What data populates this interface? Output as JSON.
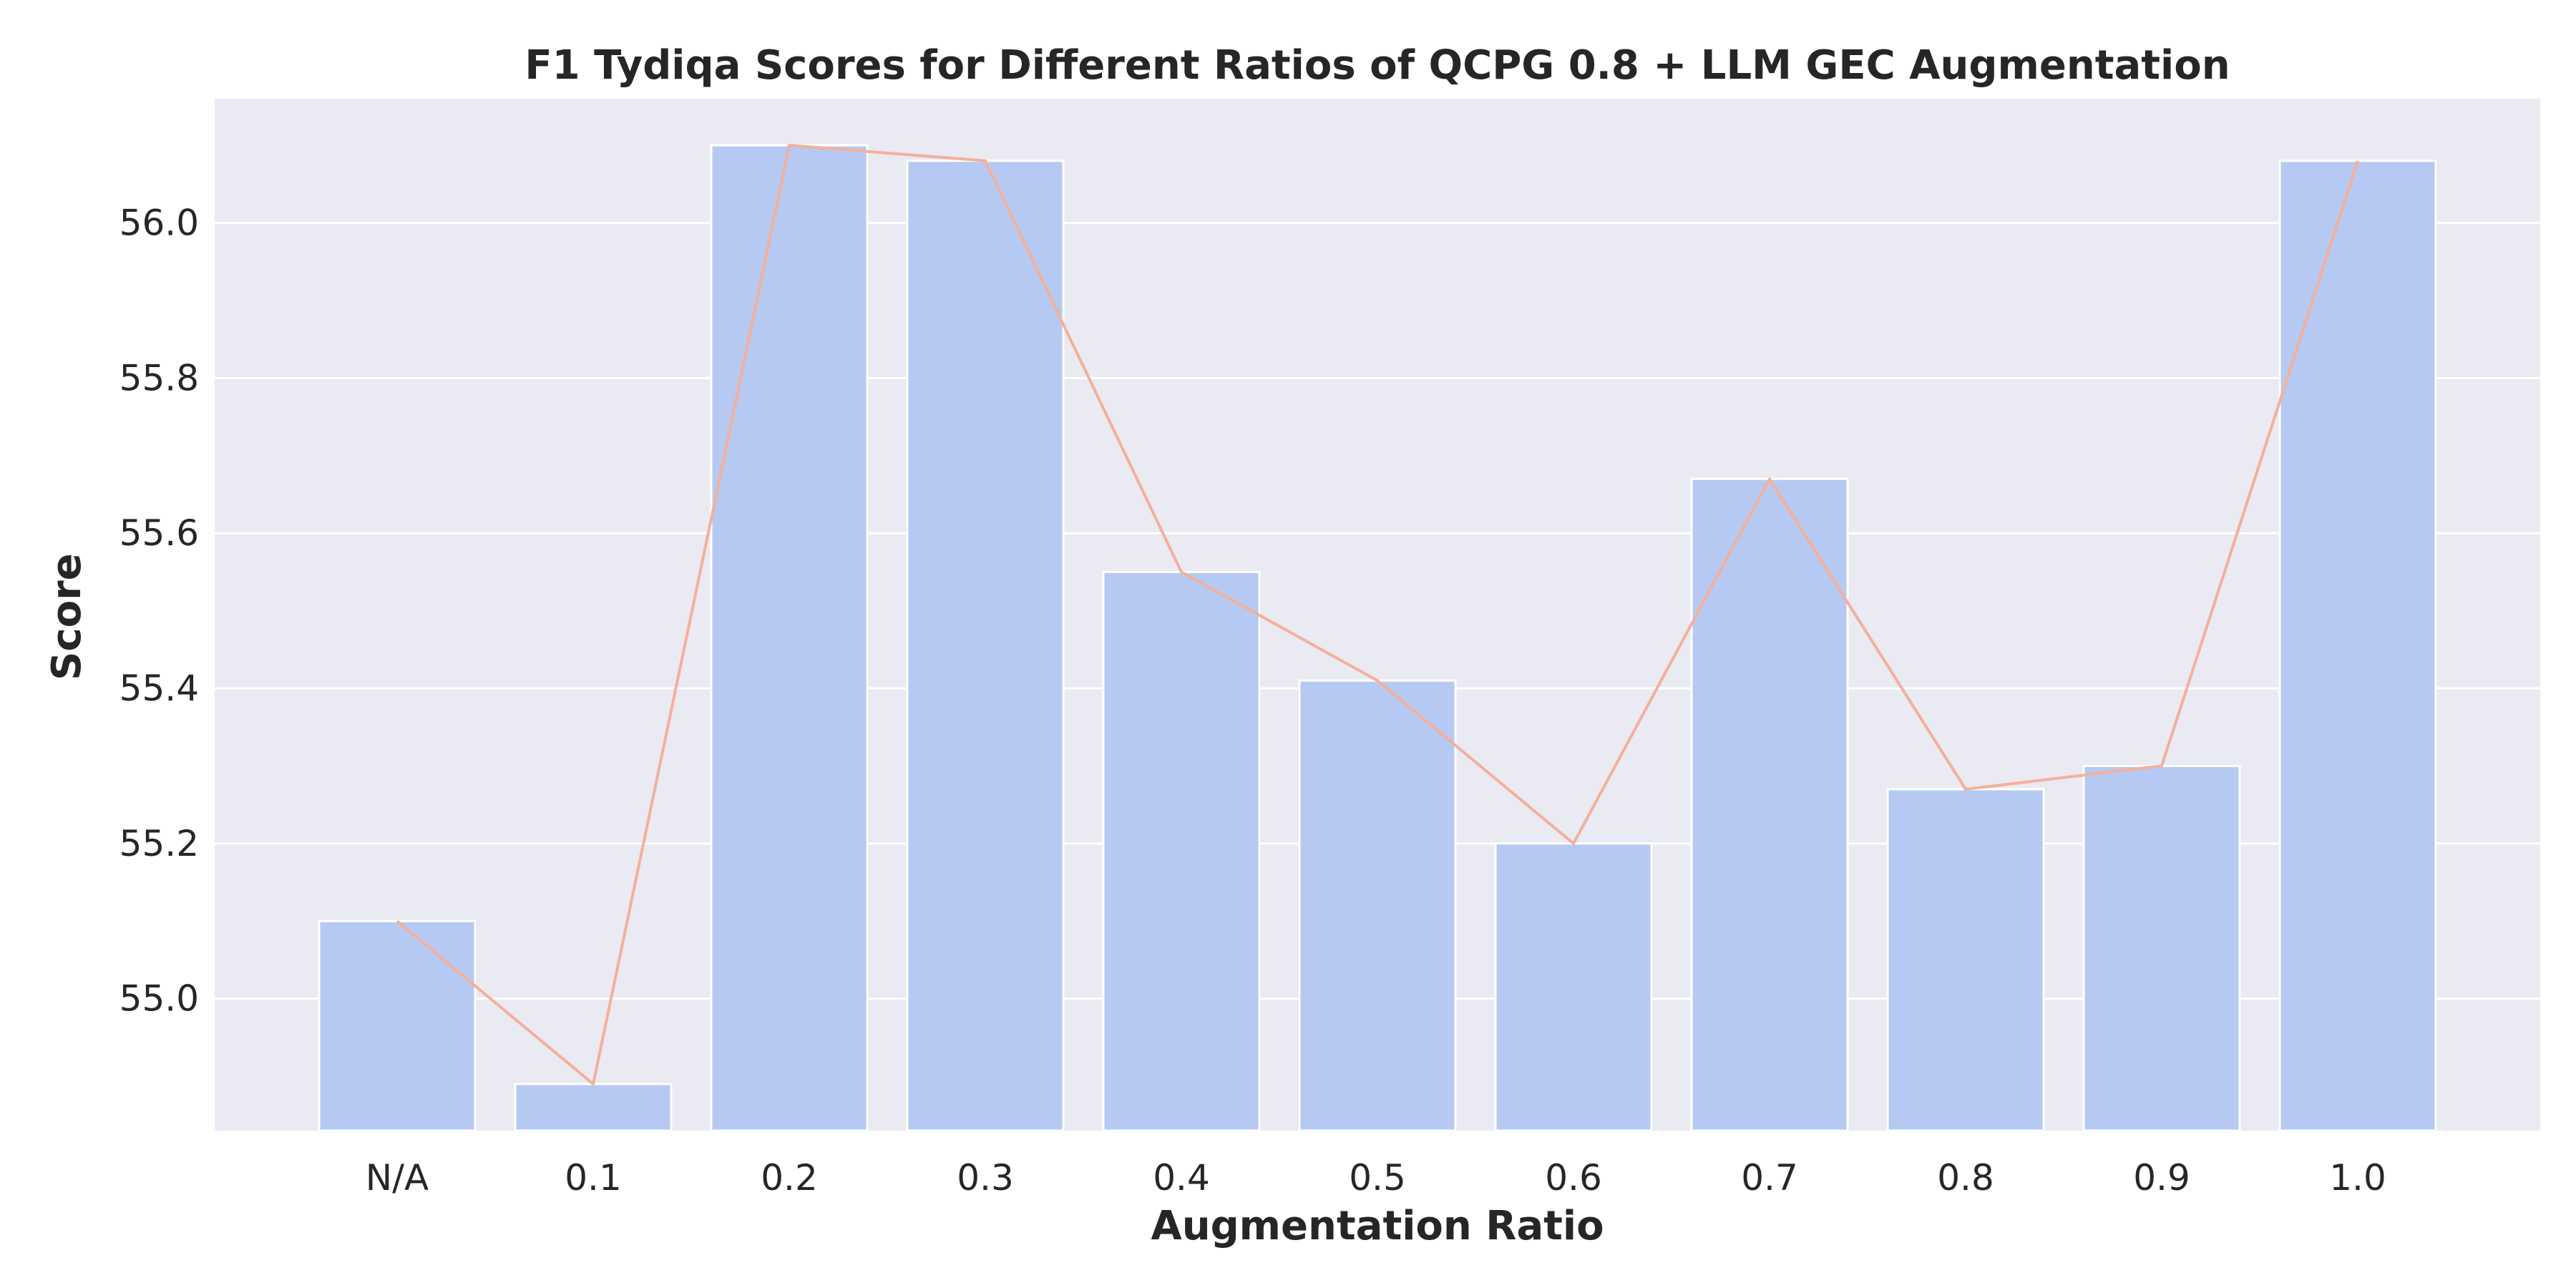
{
  "chart_data": {
    "type": "bar",
    "title": "F1 Tydiqa Scores for Different Ratios of QCPG 0.8 + LLM GEC Augmentation",
    "xlabel": "Augmentation Ratio",
    "ylabel": "Score",
    "categories": [
      "N/A",
      "0.1",
      "0.2",
      "0.3",
      "0.4",
      "0.5",
      "0.6",
      "0.7",
      "0.8",
      "0.9",
      "1.0"
    ],
    "values": [
      55.1,
      54.89,
      56.1,
      56.08,
      55.55,
      55.41,
      55.2,
      55.67,
      55.27,
      55.3,
      56.08
    ],
    "overlay_line": {
      "type": "line",
      "values": [
        55.1,
        54.89,
        56.1,
        56.08,
        55.55,
        55.41,
        55.2,
        55.67,
        55.27,
        55.3,
        56.08
      ]
    },
    "ylim": [
      54.83,
      56.16
    ],
    "yticks": [
      55.0,
      55.2,
      55.4,
      55.6,
      55.8,
      56.0
    ],
    "ytick_labels": [
      "55.0",
      "55.2",
      "55.4",
      "55.6",
      "55.8",
      "56.0"
    ],
    "grid": true,
    "colors": {
      "background": "#eaeaf2",
      "bar": "#b5c9f2",
      "line": "#f4b09a",
      "grid": "#ffffff"
    }
  }
}
